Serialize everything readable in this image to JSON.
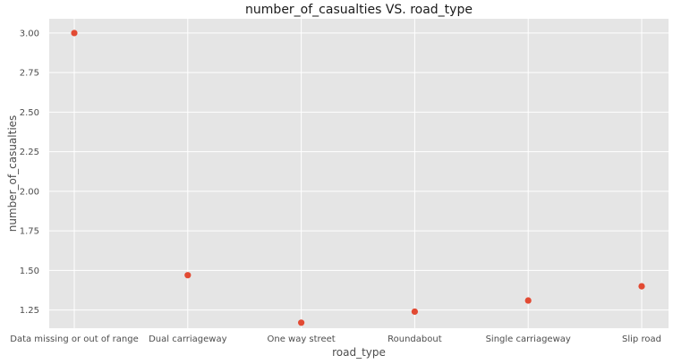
{
  "chart_data": {
    "type": "scatter",
    "title": "number_of_casualties VS. road_type",
    "xlabel": "road_type",
    "ylabel": "number_of_casualties",
    "categories": [
      "Data missing or out of range",
      "Dual carriageway",
      "One way street",
      "Roundabout",
      "Single carriageway",
      "Slip road"
    ],
    "values": [
      3.0,
      1.47,
      1.17,
      1.24,
      1.31,
      1.4
    ],
    "yticks": [
      1.25,
      1.5,
      1.75,
      2.0,
      2.25,
      2.5,
      2.75,
      3.0
    ],
    "ytick_labels": [
      "1.25",
      "1.50",
      "1.75",
      "2.00",
      "2.25",
      "2.50",
      "2.75",
      "3.00"
    ],
    "ylim": [
      1.135,
      3.09
    ],
    "grid": true,
    "point_color": "#e24a33",
    "background_color": "#e5e5e5"
  }
}
